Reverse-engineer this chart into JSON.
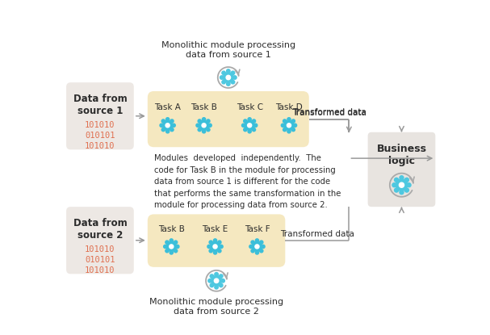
{
  "bg_color": "#ffffff",
  "source_box_color": "#ede8e4",
  "module_box_color": "#f5e8c0",
  "business_box_color": "#e8e4e0",
  "arrow_color": "#999999",
  "gear_color": "#3bbfda",
  "text_color": "#2c2c2c",
  "binary_color": "#e07050",
  "title1": "Monolithic module processing\ndata from source 1",
  "title2": "Monolithic module processing\ndata from source 2",
  "middle_text": "Modules  developed  independently.  The\ncode for Task B in the module for processing\ndata from source 1 is different for the code\nthat performs the same transformation in the\nmodule for processing data from source 2.",
  "source1_label": "Data from\nsource 1",
  "source2_label": "Data from\nsource 2",
  "binary1": "101010\n010101\n101010",
  "binary2": "101010\n010101\n101010",
  "business_label": "Business\nlogic",
  "transformed_data": "Transformed data",
  "tasks1": [
    "Task A",
    "Task B",
    "Task C",
    "Task D"
  ],
  "tasks2": [
    "Task B",
    "Task E",
    "Task F"
  ]
}
